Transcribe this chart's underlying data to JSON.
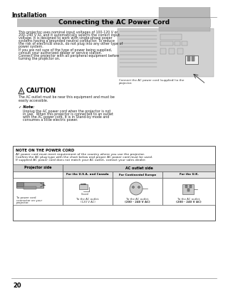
{
  "page_number": "20",
  "section_title": "Installation",
  "page_title": "Connecting the AC Power Cord",
  "body_text_lines": [
    "This projector uses nominal input voltages of 100-120 V or",
    "200–240 V AC and it automatically selects the correct input",
    "voltage. It is designed to work with single-phase power",
    "systems having a grounded neutral conductor. To reduce",
    "the risk of electrical shock, do not plug into any other type of",
    "power system.",
    "If you are not sure of the type of power being supplied,",
    "consult your authorized dealer or service station.",
    "Connect the projector with all peripheral equipment before",
    "turning the projector on."
  ],
  "image_caption": [
    "Connect the AC power cord (supplied) to the",
    "projector."
  ],
  "caution_title": "CAUTION",
  "caution_text_lines": [
    "The AC outlet must be near this equipment and must be",
    "easily accessible."
  ],
  "note_title": "✓ Note:",
  "note_text_lines": [
    "Unplug the AC power cord when the projector is not",
    "in use.  When this projector is connected to an outlet",
    "with the AC power cord, it is in Stand-by mode and",
    "consumes a little electric power."
  ],
  "note_box_title": "NOTE ON THE POWER CORD",
  "note_box_lines": [
    "AC power cord must meet requirement of the country where you use the projector.",
    "Confirm the AC plug type with the chart below and proper AC power cord must be used.",
    "If supplied AC power cord does not match your AC outlet, contact your sales dealer."
  ],
  "table_header_left": "Projector side",
  "table_header_right": "AC outlet side",
  "col_headers": [
    "For the U.S.A. and Canada",
    "For Continental Europe",
    "For the U.K."
  ],
  "col_left_label": [
    "To power cord",
    "connector on your",
    "projector."
  ],
  "col1_sub": "Ground",
  "col1_label": [
    "To the AC outlet.",
    "(120 V AC)"
  ],
  "col2_label": [
    "To the AC outlet.",
    "(200 - 240 V AC)"
  ],
  "col3_label": [
    "To the AC outlet.",
    "(200 - 240 V AC)"
  ],
  "page_bg": "#ffffff",
  "title_bg": "#c0c0c0",
  "box_bg": "#ffffff",
  "header_bg": "#d0d0d0",
  "subhdr_bg": "#e8e8e8",
  "cell_bg": "#ffffff"
}
